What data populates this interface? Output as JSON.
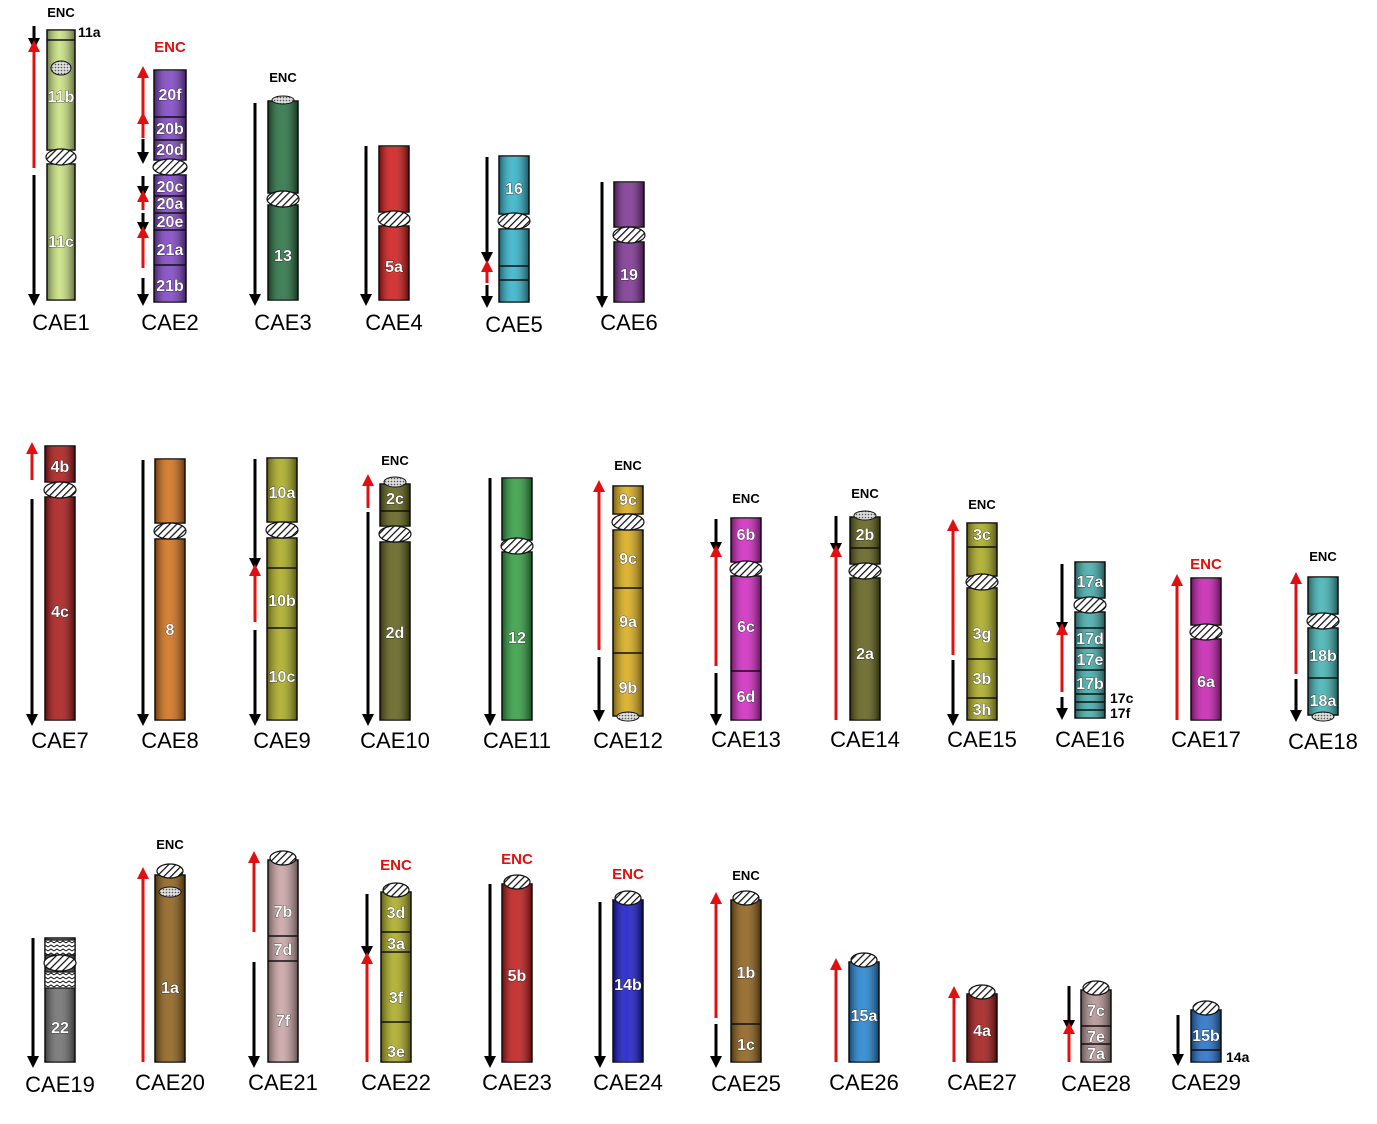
{
  "colors": {
    "forward_arrow": "#e01010",
    "reverse_arrow": "#000000",
    "enc_red": "#e01010",
    "enc_black": "#000000"
  },
  "chromosomes": [
    {
      "id": "CAE1",
      "color": "#c6e07a",
      "enc": "ENC",
      "enc_color": "black",
      "side_labels": [
        "11a"
      ],
      "segments": [
        "11a",
        "11b",
        "11c"
      ],
      "arrows": [
        "reverse",
        "forward",
        "reverse"
      ]
    },
    {
      "id": "CAE2",
      "color": "#7a3cc4",
      "enc": "ENC",
      "enc_color": "red",
      "segments": [
        "20f",
        "20b",
        "20d",
        "20c",
        "20a",
        "20e",
        "21a",
        "21b"
      ],
      "arrows": [
        "forward",
        "forward",
        "reverse",
        "reverse",
        "forward",
        "reverse",
        "forward",
        "reverse"
      ]
    },
    {
      "id": "CAE3",
      "color": "#1f6b3a",
      "enc": "ENC",
      "enc_color": "black",
      "segments": [
        "13"
      ],
      "arrows": [
        "reverse"
      ]
    },
    {
      "id": "CAE4",
      "color": "#d01010",
      "enc": "",
      "segments": [
        "5a"
      ],
      "arrows": [
        "reverse"
      ]
    },
    {
      "id": "CAE5",
      "color": "#2ab0c8",
      "enc": "",
      "segments": [
        "16"
      ],
      "arrows": [
        "reverse",
        "forward",
        "reverse"
      ]
    },
    {
      "id": "CAE6",
      "color": "#7a2a90",
      "enc": "",
      "segments": [
        "19"
      ],
      "arrows": [
        "reverse"
      ]
    },
    {
      "id": "CAE7",
      "color": "#a80f0f",
      "enc": "",
      "segments": [
        "4b",
        "4c"
      ],
      "arrows": [
        "forward",
        "reverse"
      ]
    },
    {
      "id": "CAE8",
      "color": "#d06a10",
      "enc": "",
      "segments": [
        "8"
      ],
      "arrows": [
        "reverse"
      ]
    },
    {
      "id": "CAE9",
      "color": "#a8a818",
      "enc": "",
      "segments": [
        "10a",
        "10b",
        "10c"
      ],
      "arrows": [
        "reverse",
        "forward",
        "reverse"
      ]
    },
    {
      "id": "CAE10",
      "color": "#5a5a10",
      "enc": "ENC",
      "enc_color": "black",
      "segments": [
        "2c",
        "2d"
      ],
      "arrows": [
        "forward",
        "reverse"
      ]
    },
    {
      "id": "CAE11",
      "color": "#2a9a3a",
      "enc": "",
      "segments": [
        "12"
      ],
      "arrows": [
        "reverse"
      ]
    },
    {
      "id": "CAE12",
      "color": "#d8a810",
      "enc": "ENC",
      "enc_color": "black",
      "segments": [
        "9c",
        "9c",
        "9a",
        "9b"
      ],
      "arrows": [
        "forward",
        "reverse"
      ]
    },
    {
      "id": "CAE13",
      "color": "#d020c0",
      "enc": "ENC",
      "enc_color": "black",
      "segments": [
        "6b",
        "6c",
        "6d"
      ],
      "arrows": [
        "reverse",
        "forward",
        "reverse"
      ]
    },
    {
      "id": "CAE14",
      "color": "#5a5a10",
      "enc": "ENC",
      "enc_color": "black",
      "segments": [
        "2b",
        "2a"
      ],
      "arrows": [
        "reverse",
        "forward"
      ]
    },
    {
      "id": "CAE15",
      "color": "#a8a818",
      "enc": "ENC",
      "enc_color": "black",
      "segments": [
        "3c",
        "3g",
        "3b",
        "3h"
      ],
      "arrows": [
        "forward",
        "reverse"
      ]
    },
    {
      "id": "CAE16",
      "color": "#3aa8a8",
      "enc": "",
      "side_labels": [
        "17c",
        "17f"
      ],
      "segments": [
        "17a",
        "17d",
        "17e",
        "17b"
      ],
      "arrows": [
        "reverse",
        "forward",
        "reverse"
      ]
    },
    {
      "id": "CAE17",
      "color": "#c818b0",
      "enc": "ENC",
      "enc_color": "red",
      "segments": [
        "6a"
      ],
      "arrows": [
        "forward"
      ]
    },
    {
      "id": "CAE18",
      "color": "#3ab0b0",
      "enc": "ENC",
      "enc_color": "black",
      "segments": [
        "18b",
        "18a"
      ],
      "arrows": [
        "forward",
        "reverse"
      ]
    },
    {
      "id": "CAE19",
      "color": "#6a6a6a",
      "enc": "",
      "segments": [
        "22"
      ],
      "arrows": [
        "reverse"
      ]
    },
    {
      "id": "CAE20",
      "color": "#8a5a10",
      "enc": "ENC",
      "enc_color": "black",
      "segments": [
        "1a"
      ],
      "arrows": [
        "forward"
      ]
    },
    {
      "id": "CAE21",
      "color": "#c8a0a0",
      "enc": "",
      "segments": [
        "7b",
        "7d",
        "7f"
      ],
      "arrows": [
        "forward",
        "reverse"
      ]
    },
    {
      "id": "CAE22",
      "color": "#a8a818",
      "enc": "ENC",
      "enc_color": "red",
      "segments": [
        "3d",
        "3a",
        "3f",
        "3e"
      ],
      "arrows": [
        "reverse",
        "forward"
      ]
    },
    {
      "id": "CAE23",
      "color": "#c01010",
      "enc": "ENC",
      "enc_color": "red",
      "segments": [
        "5b"
      ],
      "arrows": [
        "reverse"
      ]
    },
    {
      "id": "CAE24",
      "color": "#1010c8",
      "enc": "ENC",
      "enc_color": "red",
      "segments": [
        "14b"
      ],
      "arrows": [
        "reverse"
      ]
    },
    {
      "id": "CAE25",
      "color": "#8a5a10",
      "enc": "ENC",
      "enc_color": "black",
      "segments": [
        "1b",
        "1c"
      ],
      "arrows": [
        "forward",
        "reverse"
      ]
    },
    {
      "id": "CAE26",
      "color": "#1a80d0",
      "enc": "",
      "segments": [
        "15a"
      ],
      "arrows": [
        "forward"
      ]
    },
    {
      "id": "CAE27",
      "color": "#a01010",
      "enc": "",
      "segments": [
        "4a"
      ],
      "arrows": [
        "forward"
      ]
    },
    {
      "id": "CAE28",
      "color": "#b09090",
      "enc": "",
      "segments": [
        "7c",
        "7e",
        "7a"
      ],
      "arrows": [
        "reverse",
        "forward"
      ]
    },
    {
      "id": "CAE29",
      "color": "#1a6ac8",
      "enc": "",
      "side_labels": [
        "14a"
      ],
      "segments": [
        "15b"
      ],
      "arrows": [
        "reverse"
      ]
    }
  ]
}
